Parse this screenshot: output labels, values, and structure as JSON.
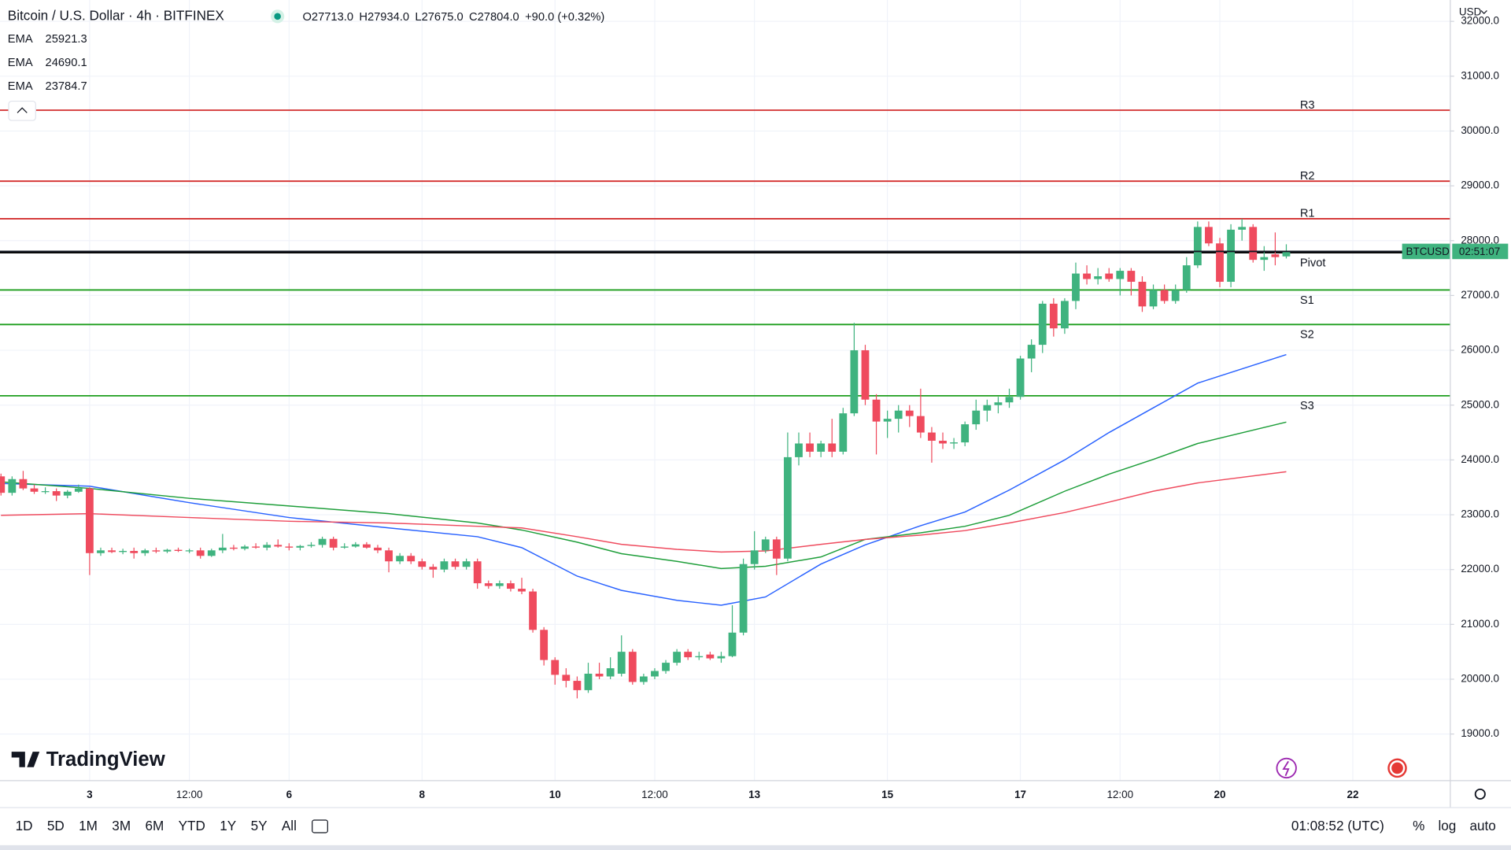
{
  "header": {
    "title": "Bitcoin / U.S. Dollar · 4h · BITFINEX",
    "ohlc": [
      "O27713.0",
      "H27934.0",
      "L27675.0",
      "C27804.0",
      "+90.0 (+0.32%)"
    ],
    "currency": "USD",
    "price_tag": "BTCUSD",
    "countdown": "02:51:07",
    "logo": "TradingView"
  },
  "toolbar": {
    "ranges": [
      "1D",
      "5D",
      "1M",
      "3M",
      "6M",
      "YTD",
      "1Y",
      "5Y",
      "All"
    ],
    "clock": "01:08:52 (UTC)",
    "options": [
      "%",
      "log",
      "auto"
    ]
  },
  "chart_data": {
    "type": "candlestick",
    "up_color": "#3fb37f",
    "down_color": "#ef4b5e",
    "xlim": [
      -0.09,
      130.8
    ],
    "ylim": [
      18150,
      32390
    ],
    "grid": true,
    "xticks": [
      {
        "value": 8,
        "label": "3"
      },
      {
        "value": 17,
        "label": "12:00"
      },
      {
        "value": 26,
        "label": "6"
      },
      {
        "value": 38,
        "label": "8"
      },
      {
        "value": 50,
        "label": "10"
      },
      {
        "value": 59,
        "label": "12:00"
      },
      {
        "value": 68,
        "label": "13"
      },
      {
        "value": 80,
        "label": "15"
      },
      {
        "value": 92,
        "label": "17"
      },
      {
        "value": 101,
        "label": "12:00"
      },
      {
        "value": 110,
        "label": "20"
      },
      {
        "value": 122,
        "label": "22"
      }
    ],
    "yticks": [
      {
        "value": 19000,
        "label": "19000.0"
      },
      {
        "value": 20000,
        "label": "20000.0"
      },
      {
        "value": 21000,
        "label": "21000.0"
      },
      {
        "value": 22000,
        "label": "22000.0"
      },
      {
        "value": 23000,
        "label": "23000.0"
      },
      {
        "value": 24000,
        "label": "24000.0"
      },
      {
        "value": 25000,
        "label": "25000.0"
      },
      {
        "value": 26000,
        "label": "26000.0"
      },
      {
        "value": 27000,
        "label": "27000.0"
      },
      {
        "value": 28000,
        "label": "28000.0"
      },
      {
        "value": 29000,
        "label": "29000.0"
      },
      {
        "value": 30000,
        "label": "30000.0"
      },
      {
        "value": 31000,
        "label": "31000.0"
      },
      {
        "value": 32000,
        "label": "32000.0"
      }
    ],
    "candles": [
      [
        23700,
        23750,
        23350,
        23400
      ],
      [
        23400,
        23700,
        23350,
        23650
      ],
      [
        23650,
        23800,
        23450,
        23480
      ],
      [
        23480,
        23550,
        23380,
        23420
      ],
      [
        23420,
        23500,
        23380,
        23430
      ],
      [
        23430,
        23480,
        23250,
        23350
      ],
      [
        23350,
        23450,
        23300,
        23420
      ],
      [
        23420,
        23550,
        23400,
        23480
      ],
      [
        23480,
        23500,
        21900,
        22300
      ],
      [
        22300,
        22400,
        22250,
        22350
      ],
      [
        22350,
        22400,
        22300,
        22320
      ],
      [
        22320,
        22380,
        22280,
        22340
      ],
      [
        22340,
        22400,
        22200,
        22300
      ],
      [
        22300,
        22380,
        22250,
        22350
      ],
      [
        22350,
        22400,
        22300,
        22330
      ],
      [
        22330,
        22380,
        22300,
        22360
      ],
      [
        22360,
        22400,
        22320,
        22340
      ],
      [
        22340,
        22380,
        22300,
        22350
      ],
      [
        22350,
        22400,
        22200,
        22250
      ],
      [
        22250,
        22380,
        22230,
        22350
      ],
      [
        22350,
        22650,
        22300,
        22400
      ],
      [
        22400,
        22450,
        22350,
        22380
      ],
      [
        22380,
        22450,
        22350,
        22420
      ],
      [
        22420,
        22480,
        22380,
        22400
      ],
      [
        22400,
        22500,
        22350,
        22450
      ],
      [
        22450,
        22550,
        22400,
        22420
      ],
      [
        22420,
        22480,
        22350,
        22400
      ],
      [
        22400,
        22450,
        22350,
        22430
      ],
      [
        22430,
        22500,
        22400,
        22450
      ],
      [
        22450,
        22600,
        22400,
        22560
      ],
      [
        22560,
        22600,
        22350,
        22400
      ],
      [
        22400,
        22480,
        22380,
        22420
      ],
      [
        22420,
        22500,
        22400,
        22460
      ],
      [
        22460,
        22500,
        22380,
        22400
      ],
      [
        22400,
        22450,
        22300,
        22350
      ],
      [
        22350,
        22400,
        21950,
        22150
      ],
      [
        22150,
        22300,
        22100,
        22250
      ],
      [
        22250,
        22300,
        22100,
        22150
      ],
      [
        22150,
        22200,
        22000,
        22050
      ],
      [
        22050,
        22100,
        21850,
        22000
      ],
      [
        22000,
        22200,
        21950,
        22150
      ],
      [
        22150,
        22200,
        22000,
        22050
      ],
      [
        22050,
        22200,
        22000,
        22150
      ],
      [
        22150,
        22200,
        21650,
        21750
      ],
      [
        21750,
        21800,
        21650,
        21700
      ],
      [
        21700,
        21800,
        21650,
        21750
      ],
      [
        21750,
        21800,
        21600,
        21650
      ],
      [
        21650,
        21850,
        21550,
        21600
      ],
      [
        21600,
        21650,
        20850,
        20900
      ],
      [
        20900,
        20950,
        20250,
        20350
      ],
      [
        20350,
        20400,
        19900,
        20080
      ],
      [
        20080,
        20200,
        19850,
        19970
      ],
      [
        19970,
        20050,
        19650,
        19800
      ],
      [
        19800,
        20300,
        19750,
        20100
      ],
      [
        20100,
        20300,
        20000,
        20050
      ],
      [
        20050,
        20400,
        20000,
        20200
      ],
      [
        20100,
        20800,
        20050,
        20500
      ],
      [
        20500,
        20550,
        19900,
        19950
      ],
      [
        19950,
        20100,
        19900,
        20050
      ],
      [
        20050,
        20200,
        20000,
        20150
      ],
      [
        20150,
        20350,
        20100,
        20300
      ],
      [
        20300,
        20550,
        20250,
        20500
      ],
      [
        20500,
        20550,
        20350,
        20400
      ],
      [
        20400,
        20500,
        20350,
        20420
      ],
      [
        20450,
        20500,
        20350,
        20380
      ],
      [
        20380,
        20500,
        20300,
        20420
      ],
      [
        20420,
        21350,
        20400,
        20850
      ],
      [
        20850,
        22200,
        20800,
        22100
      ],
      [
        22100,
        22700,
        22000,
        22350
      ],
      [
        22350,
        22600,
        22300,
        22550
      ],
      [
        22550,
        22600,
        21900,
        22200
      ],
      [
        22200,
        24500,
        22150,
        24050
      ],
      [
        24050,
        24500,
        23900,
        24300
      ],
      [
        24300,
        24500,
        24050,
        24150
      ],
      [
        24150,
        24350,
        24050,
        24300
      ],
      [
        24300,
        24750,
        24050,
        24150
      ],
      [
        24150,
        24950,
        24100,
        24850
      ],
      [
        24850,
        26500,
        24800,
        26000
      ],
      [
        26000,
        26100,
        25000,
        25100
      ],
      [
        25100,
        25200,
        24100,
        24700
      ],
      [
        24700,
        24900,
        24400,
        24750
      ],
      [
        24750,
        25000,
        24500,
        24900
      ],
      [
        24900,
        25000,
        24600,
        24800
      ],
      [
        24800,
        25300,
        24400,
        24500
      ],
      [
        24500,
        24600,
        23950,
        24350
      ],
      [
        24350,
        24500,
        24200,
        24300
      ],
      [
        24300,
        24400,
        24200,
        24320
      ],
      [
        24320,
        24700,
        24250,
        24650
      ],
      [
        24650,
        25100,
        24550,
        24900
      ],
      [
        24900,
        25100,
        24700,
        25000
      ],
      [
        25000,
        25150,
        24850,
        25050
      ],
      [
        25050,
        25300,
        24950,
        25150
      ],
      [
        25150,
        25900,
        25100,
        25850
      ],
      [
        25850,
        26200,
        25600,
        26100
      ],
      [
        26100,
        26900,
        25950,
        26850
      ],
      [
        26850,
        26950,
        26250,
        26400
      ],
      [
        26400,
        26950,
        26300,
        26900
      ],
      [
        26900,
        27600,
        26750,
        27400
      ],
      [
        27400,
        27550,
        27200,
        27300
      ],
      [
        27300,
        27500,
        27200,
        27350
      ],
      [
        27400,
        27500,
        27250,
        27300
      ],
      [
        27300,
        27500,
        27000,
        27450
      ],
      [
        27450,
        27500,
        27000,
        27250
      ],
      [
        27250,
        27350,
        26700,
        26800
      ],
      [
        26800,
        27200,
        26750,
        27100
      ],
      [
        27100,
        27200,
        26850,
        26900
      ],
      [
        26900,
        27200,
        26850,
        27100
      ],
      [
        27100,
        27700,
        27050,
        27550
      ],
      [
        27550,
        28350,
        27500,
        28250
      ],
      [
        28250,
        28350,
        27900,
        27950
      ],
      [
        27950,
        28050,
        27150,
        27250
      ],
      [
        27250,
        28300,
        27150,
        28200
      ],
      [
        28200,
        28400,
        28000,
        28250
      ],
      [
        28250,
        28300,
        27600,
        27650
      ],
      [
        27650,
        27900,
        27450,
        27700
      ],
      [
        27750,
        28150,
        27550,
        27700
      ],
      [
        27713,
        27934,
        27675,
        27804
      ]
    ],
    "ema": [
      {
        "name": "EMA",
        "value_label": "25921.3",
        "color": "#2962ff",
        "x": [
          0,
          8,
          17,
          26,
          35,
          43,
          47,
          52,
          56,
          61,
          65,
          69,
          74,
          78,
          83,
          87,
          91,
          96,
          100,
          104,
          108,
          116
        ],
        "values": [
          23570,
          23520,
          23220,
          22950,
          22760,
          22600,
          22400,
          21880,
          21620,
          21440,
          21350,
          21500,
          22100,
          22450,
          22800,
          23050,
          23450,
          24000,
          24500,
          24950,
          25400,
          25921.3
        ]
      },
      {
        "name": "EMA",
        "value_label": "24690.1",
        "color": "#1e9e3a",
        "x": [
          0,
          8,
          17,
          26,
          35,
          43,
          47,
          52,
          56,
          61,
          65,
          69,
          74,
          78,
          83,
          87,
          91,
          96,
          100,
          104,
          108,
          116
        ],
        "values": [
          23600,
          23480,
          23300,
          23160,
          23020,
          22850,
          22720,
          22500,
          22290,
          22150,
          22020,
          22060,
          22230,
          22550,
          22670,
          22790,
          22990,
          23430,
          23740,
          24010,
          24300,
          24690.1
        ]
      },
      {
        "name": "EMA",
        "value_label": "23784.7",
        "color": "#ef4b5e",
        "x": [
          0,
          8,
          17,
          26,
          35,
          43,
          47,
          52,
          56,
          61,
          65,
          69,
          74,
          78,
          83,
          87,
          91,
          96,
          100,
          104,
          108,
          116
        ],
        "values": [
          22990,
          23020,
          22950,
          22880,
          22850,
          22790,
          22760,
          22600,
          22460,
          22370,
          22320,
          22340,
          22460,
          22550,
          22630,
          22710,
          22850,
          23040,
          23230,
          23430,
          23580,
          23784.7
        ]
      }
    ],
    "levels": [
      {
        "name": "R3",
        "value": 30380,
        "color": "#d32f2f"
      },
      {
        "name": "R2",
        "value": 29085,
        "color": "#d32f2f"
      },
      {
        "name": "R1",
        "value": 28400,
        "color": "#d32f2f"
      },
      {
        "name": "Pivot",
        "value": 27780,
        "color": "#000000"
      },
      {
        "name": "S1",
        "value": 27100,
        "color": "#1e9e1e"
      },
      {
        "name": "S2",
        "value": 26470,
        "color": "#1e9e1e"
      },
      {
        "name": "S3",
        "value": 25170,
        "color": "#1e9e1e"
      }
    ]
  }
}
